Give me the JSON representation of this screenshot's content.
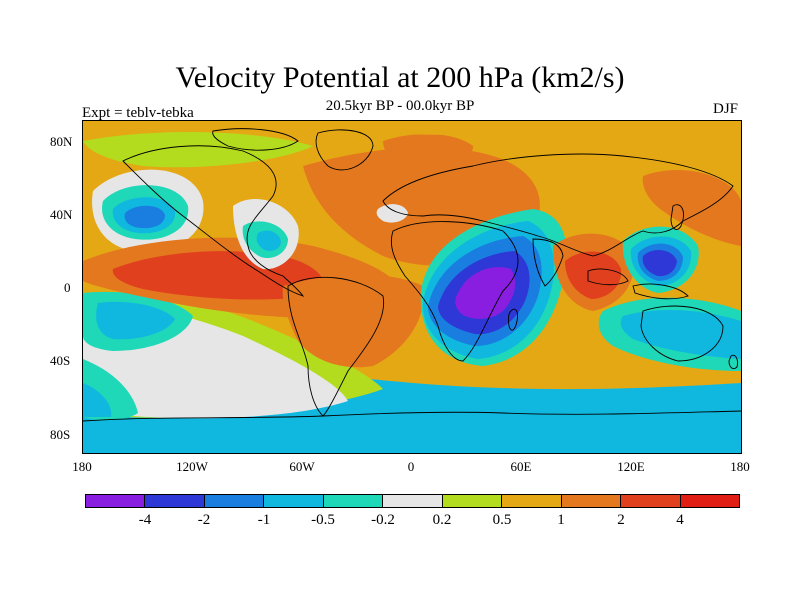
{
  "title": "Velocity Potential at 200 hPa (km2/s)",
  "subtitle": "20.5kyr BP - 00.0kyr BP",
  "experiment_label": "Expt = teblv-tebka",
  "season_label": "DJF",
  "lat_labels": [
    "80N",
    "40N",
    "0",
    "40S",
    "80S"
  ],
  "lon_labels": [
    "180",
    "120W",
    "60W",
    "0",
    "60E",
    "120E",
    "180"
  ],
  "colorbar": {
    "colors": [
      "#8a1ee0",
      "#2e38d6",
      "#1a7ee0",
      "#10b8e0",
      "#1ed8b8",
      "#e6e6e6",
      "#b4dc1e",
      "#e4a814",
      "#e4781e",
      "#e0401e",
      "#e01e14"
    ],
    "labels": [
      "-4",
      "-2",
      "-1",
      "-0.5",
      "-0.2",
      "0.2",
      "0.5",
      "1",
      "2",
      "4"
    ]
  },
  "colors": {
    "background": "#ffffff",
    "coast": "#000000"
  }
}
